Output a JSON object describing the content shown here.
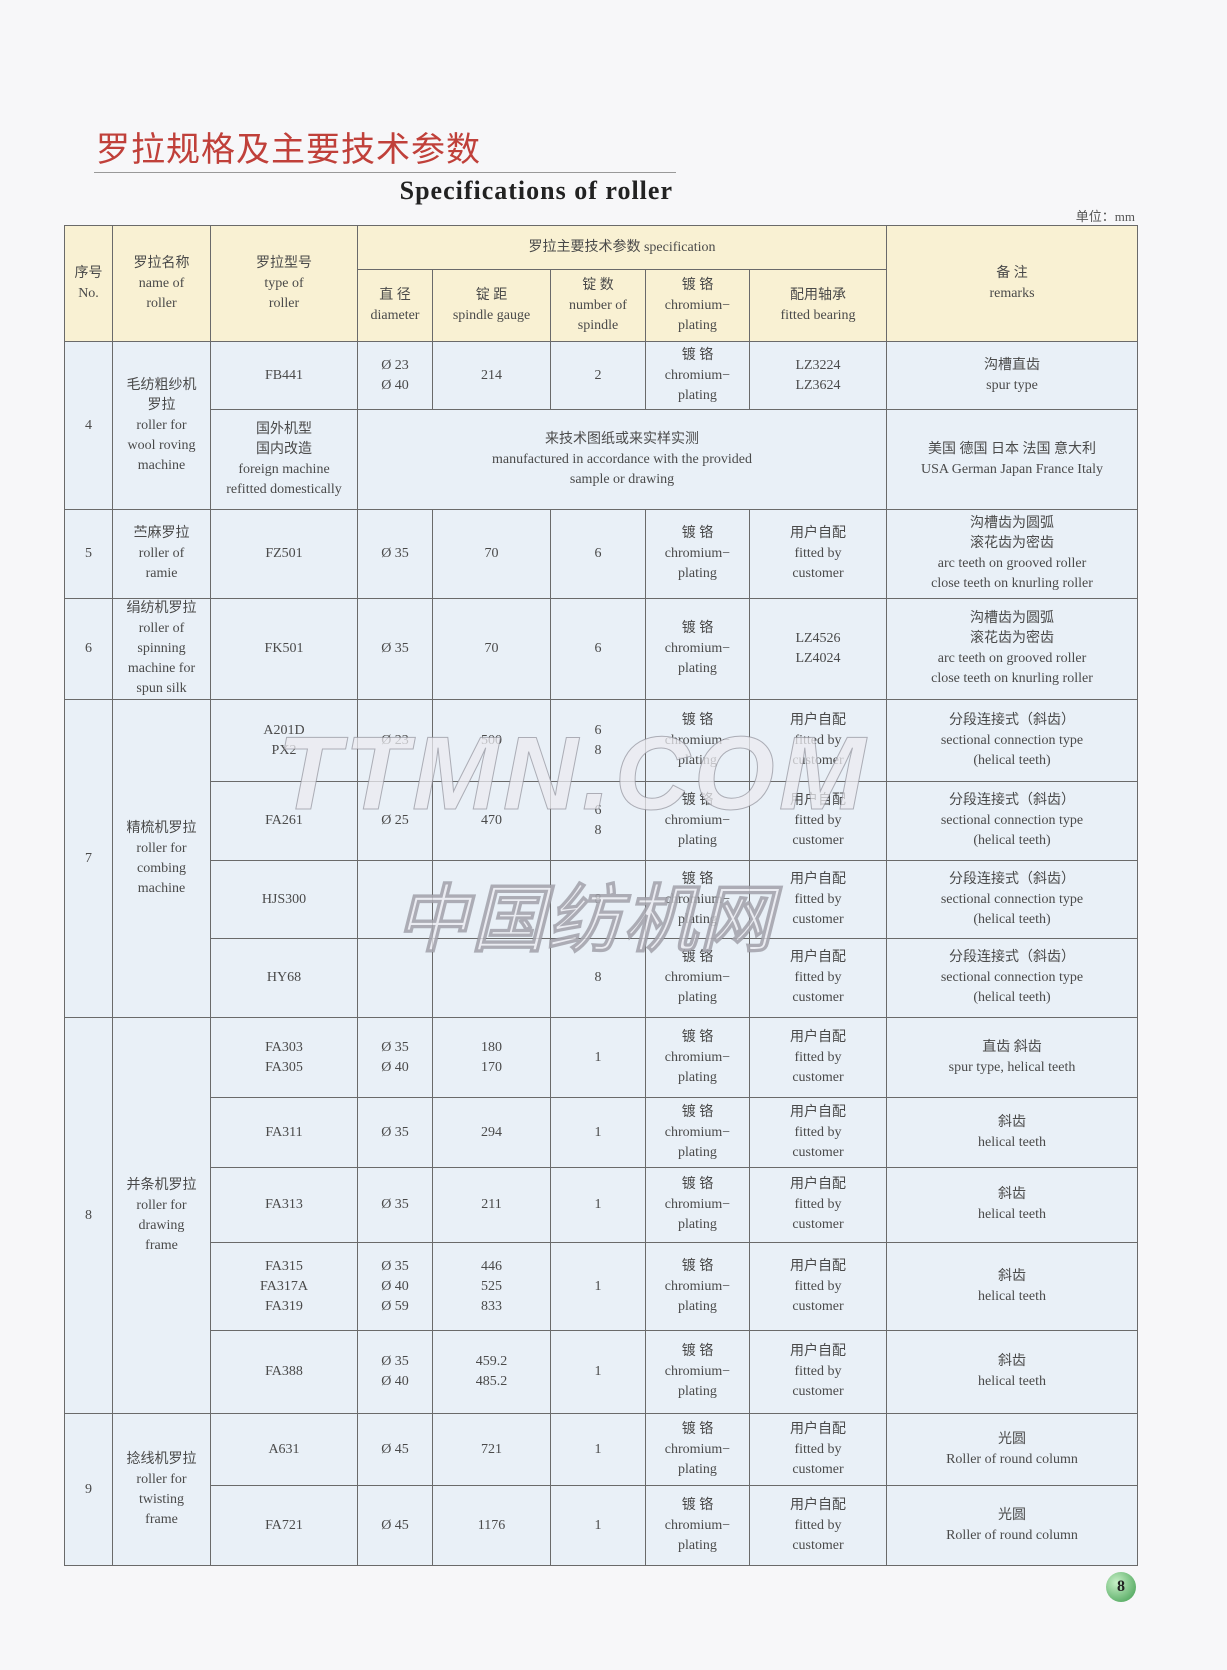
{
  "header": {
    "title_cn": "罗拉规格及主要技术参数",
    "title_en": "Specifications of roller",
    "unit": "单位：mm"
  },
  "watermark": {
    "en": "TTMN.COM",
    "cn": "中国纺机网"
  },
  "table": {
    "columns": {
      "no": [
        "序号",
        "No."
      ],
      "name": [
        "罗拉名称",
        "name of",
        "roller"
      ],
      "type": [
        "罗拉型号",
        "type of",
        "roller"
      ],
      "spec": "罗拉主要技术参数 specification",
      "diameter": [
        "直 径",
        "diameter"
      ],
      "gauge": [
        "锭 距",
        "spindle gauge"
      ],
      "spindles": [
        "锭 数",
        "number of",
        "spindle"
      ],
      "plating": [
        "镀 铬",
        "chromium−",
        "plating"
      ],
      "bearing": [
        "配用轴承",
        "fitted bearing"
      ],
      "remarks": [
        "备 注",
        "remarks"
      ]
    },
    "groups": [
      {
        "no": "4",
        "name": [
          "毛纺粗纱机",
          "罗拉",
          "roller for",
          "wool roving",
          "machine"
        ],
        "rows": [
          {
            "type": [
              "FB441"
            ],
            "diameter": [
              "Ø 23",
              "Ø 40"
            ],
            "gauge": [
              "214"
            ],
            "spindles": [
              "2"
            ],
            "plating": [
              "镀 铬",
              "chromium−",
              "plating"
            ],
            "bearing": [
              "LZ3224",
              "LZ3624"
            ],
            "remarks": [
              "沟槽直齿",
              "spur type"
            ]
          },
          {
            "type": [
              "国外机型",
              "国内改造",
              "foreign machine",
              "refitted domestically"
            ],
            "spec": [
              "来技术图纸或来实样实测",
              "manufactured in accordance with the provided",
              "sample or drawing"
            ],
            "remarks": [
              "美国 德国 日本 法国 意大利",
              "USA German Japan France Italy"
            ]
          }
        ]
      },
      {
        "no": "5",
        "name": [
          "苎麻罗拉",
          "roller of",
          "ramie"
        ],
        "rows": [
          {
            "type": [
              "FZ501"
            ],
            "diameter": [
              "Ø 35"
            ],
            "gauge": [
              "70"
            ],
            "spindles": [
              "6"
            ],
            "plating": [
              "镀 铬",
              "chromium−",
              "plating"
            ],
            "bearing": [
              "用户自配",
              "fitted by",
              "customer"
            ],
            "remarks": [
              "沟槽齿为圆弧",
              "滚花齿为密齿",
              "arc teeth on grooved roller",
              "close teeth on knurling roller"
            ]
          }
        ]
      },
      {
        "no": "6",
        "name": [
          "绢纺机罗拉",
          "roller of",
          "spinning",
          "machine for",
          "spun silk"
        ],
        "rows": [
          {
            "type": [
              "FK501"
            ],
            "diameter": [
              "Ø 35"
            ],
            "gauge": [
              "70"
            ],
            "spindles": [
              "6"
            ],
            "plating": [
              "镀 铬",
              "chromium−",
              "plating"
            ],
            "bearing": [
              "LZ4526",
              "LZ4024"
            ],
            "remarks": [
              "沟槽齿为圆弧",
              "滚花齿为密齿",
              "arc teeth on grooved roller",
              "close teeth on knurling roller"
            ]
          }
        ]
      },
      {
        "no": "7",
        "name": [
          "精梳机罗拉",
          "roller for",
          "combing",
          "machine"
        ],
        "rows": [
          {
            "type": [
              "A201D",
              "PX2"
            ],
            "diameter": [
              "Ø 23"
            ],
            "gauge": [
              "500"
            ],
            "spindles": [
              "6",
              "8"
            ],
            "plating": [
              "镀 铬",
              "chromium−",
              "plating"
            ],
            "bearing": [
              "用户自配",
              "fitted by",
              "customer"
            ],
            "remarks": [
              "分段连接式（斜齿）",
              "sectional connection type",
              "(helical teeth)"
            ]
          },
          {
            "type": [
              "FA261"
            ],
            "diameter": [
              "Ø 25"
            ],
            "gauge": [
              "470"
            ],
            "spindles": [
              "6",
              "8"
            ],
            "plating": [
              "镀 铬",
              "chromium−",
              "plating"
            ],
            "bearing": [
              "用户自配",
              "fitted by",
              "customer"
            ],
            "remarks": [
              "分段连接式（斜齿）",
              "sectional connection type",
              "(helical teeth)"
            ]
          },
          {
            "type": [
              "HJS300"
            ],
            "spindles": [
              "8"
            ],
            "plating": [
              "镀 铬",
              "chromium−",
              "plating"
            ],
            "bearing": [
              "用户自配",
              "fitted by",
              "customer"
            ],
            "remarks": [
              "分段连接式（斜齿）",
              "sectional connection type",
              "(helical teeth)"
            ]
          },
          {
            "type": [
              "HY68"
            ],
            "spindles": [
              "8"
            ],
            "plating": [
              "镀 铬",
              "chromium−",
              "plating"
            ],
            "bearing": [
              "用户自配",
              "fitted by",
              "customer"
            ],
            "remarks": [
              "分段连接式（斜齿）",
              "sectional connection type",
              "(helical teeth)"
            ]
          }
        ]
      },
      {
        "no": "8",
        "name": [
          "并条机罗拉",
          "roller for",
          "drawing",
          "frame"
        ],
        "rows": [
          {
            "type": [
              "FA303",
              "FA305"
            ],
            "diameter": [
              "Ø 35",
              "Ø 40"
            ],
            "gauge": [
              "180",
              "170"
            ],
            "spindles": [
              "1"
            ],
            "plating": [
              "镀 铬",
              "chromium−",
              "plating"
            ],
            "bearing": [
              "用户自配",
              "fitted by",
              "customer"
            ],
            "remarks": [
              "直齿 斜齿",
              "spur type, helical teeth"
            ]
          },
          {
            "type": [
              "FA311"
            ],
            "diameter": [
              "Ø 35"
            ],
            "gauge": [
              "294"
            ],
            "spindles": [
              "1"
            ],
            "plating": [
              "镀 铬",
              "chromium−",
              "plating"
            ],
            "bearing": [
              "用户自配",
              "fitted by",
              "customer"
            ],
            "remarks": [
              "斜齿",
              "helical teeth"
            ]
          },
          {
            "type": [
              "FA313"
            ],
            "diameter": [
              "Ø 35"
            ],
            "gauge": [
              "211"
            ],
            "spindles": [
              "1"
            ],
            "plating": [
              "镀 铬",
              "chromium−",
              "plating"
            ],
            "bearing": [
              "用户自配",
              "fitted by",
              "customer"
            ],
            "remarks": [
              "斜齿",
              "helical teeth"
            ]
          },
          {
            "type": [
              "FA315",
              "FA317A",
              "FA319"
            ],
            "diameter": [
              "Ø 35",
              "Ø 40",
              "Ø 59"
            ],
            "gauge": [
              "446",
              "525",
              "833"
            ],
            "spindles": [
              "1"
            ],
            "plating": [
              "镀 铬",
              "chromium−",
              "plating"
            ],
            "bearing": [
              "用户自配",
              "fitted by",
              "customer"
            ],
            "remarks": [
              "斜齿",
              "helical teeth"
            ]
          },
          {
            "type": [
              "FA388"
            ],
            "diameter": [
              "Ø 35",
              "Ø 40"
            ],
            "gauge": [
              "459.2",
              "485.2"
            ],
            "spindles": [
              "1"
            ],
            "plating": [
              "镀 铬",
              "chromium−",
              "plating"
            ],
            "bearing": [
              "用户自配",
              "fitted by",
              "customer"
            ],
            "remarks": [
              "斜齿",
              "helical teeth"
            ]
          }
        ]
      },
      {
        "no": "9",
        "name": [
          "捻线机罗拉",
          "roller for",
          "twisting",
          "frame"
        ],
        "rows": [
          {
            "type": [
              "A631"
            ],
            "diameter": [
              "Ø 45"
            ],
            "gauge": [
              "721"
            ],
            "spindles": [
              "1"
            ],
            "plating": [
              "镀 铬",
              "chromium−",
              "plating"
            ],
            "bearing": [
              "用户自配",
              "fitted by",
              "customer"
            ],
            "remarks": [
              "光圆",
              "Roller of round column"
            ]
          },
          {
            "type": [
              "FA721"
            ],
            "diameter": [
              "Ø 45"
            ],
            "gauge": [
              "1176"
            ],
            "spindles": [
              "1"
            ],
            "plating": [
              "镀 铬",
              "chromium−",
              "plating"
            ],
            "bearing": [
              "用户自配",
              "fitted by",
              "customer"
            ],
            "remarks": [
              "光圆",
              "Roller of round column"
            ]
          }
        ]
      }
    ]
  },
  "page_number": "8"
}
